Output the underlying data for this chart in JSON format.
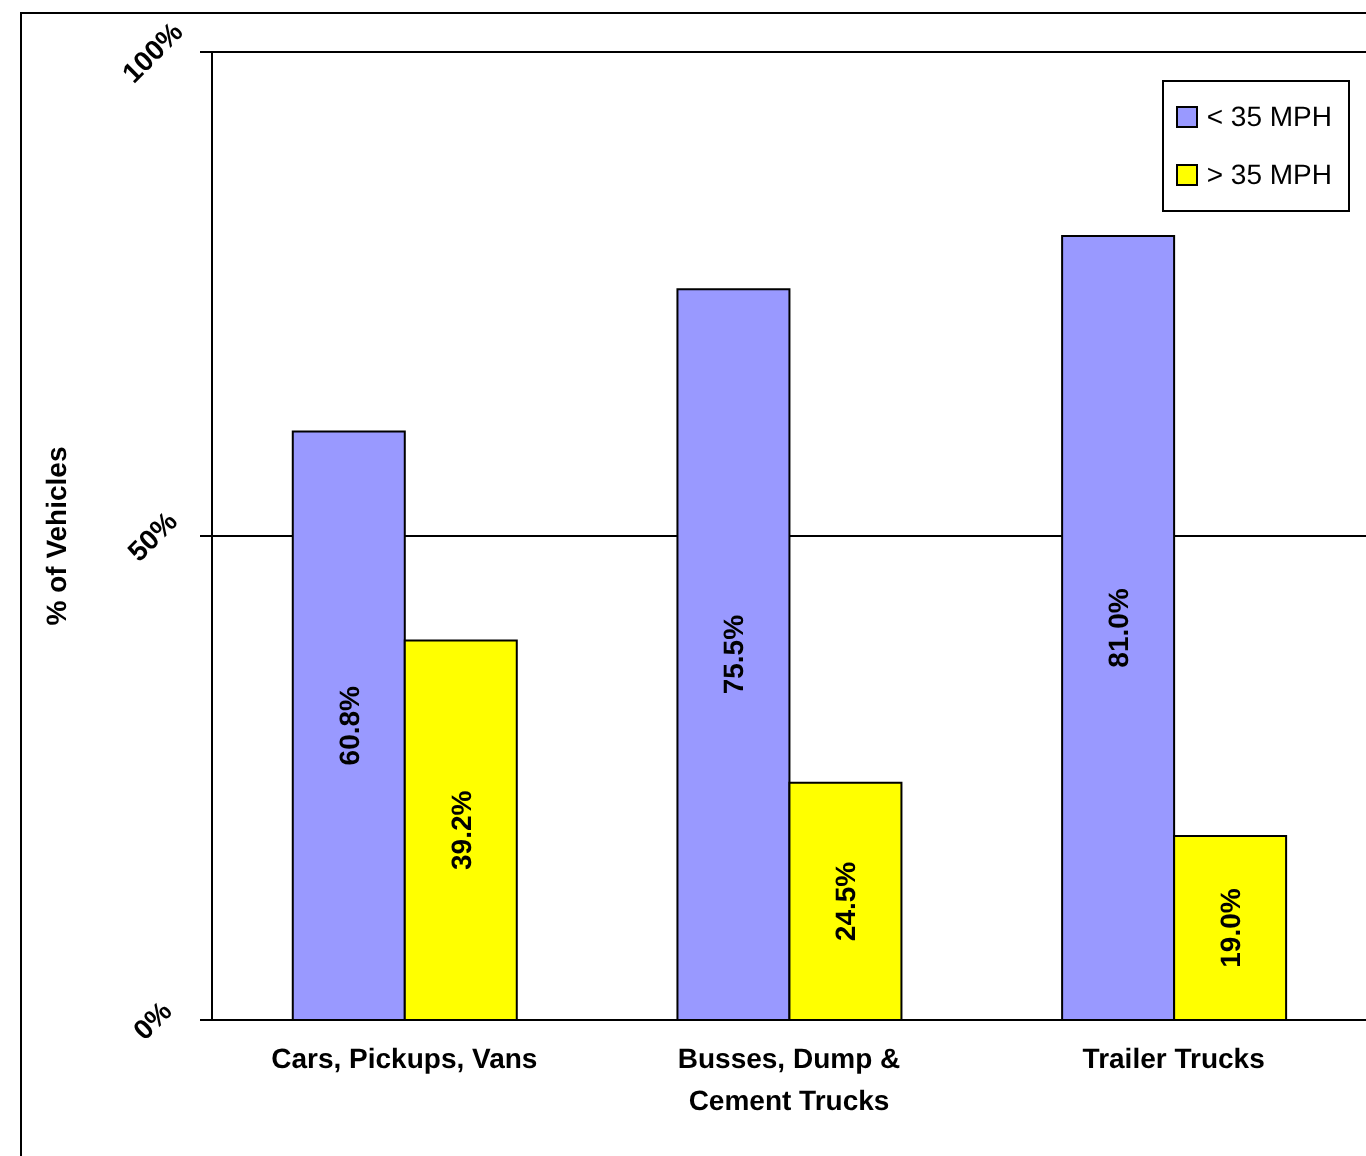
{
  "chart_data": {
    "type": "bar",
    "ylabel": "% of Vehicles",
    "categories": [
      "Cars, Pickups, Vans",
      "Busses, Dump & Cement Trucks",
      "Trailer Trucks"
    ],
    "series": [
      {
        "name": "< 35 MPH",
        "color": "#9999ff",
        "values": [
          60.8,
          75.5,
          81.0
        ],
        "value_labels": [
          "60.8%",
          "75.5%",
          "81.0%"
        ]
      },
      {
        "name": "> 35 MPH",
        "color": "#ffff00",
        "values": [
          39.2,
          24.5,
          19.0
        ],
        "value_labels": [
          "39.2%",
          "24.5%",
          "19.0%"
        ]
      }
    ],
    "ylim": [
      0,
      100
    ],
    "yticks": [
      {
        "value": 0,
        "label": "0%"
      },
      {
        "value": 50,
        "label": "50%"
      },
      {
        "value": 100,
        "label": "100%"
      }
    ],
    "grid": "y",
    "legend": "top right"
  }
}
